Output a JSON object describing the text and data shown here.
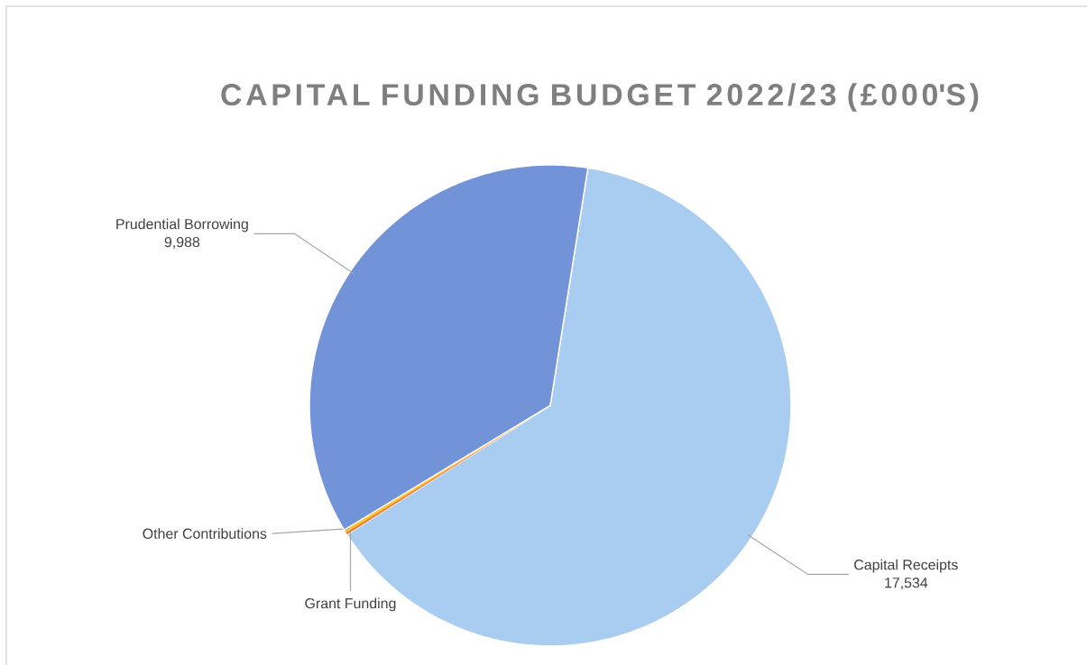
{
  "chart_data": {
    "type": "pie",
    "title": "CAPITAL FUNDING BUDGET 2022/23 (£000'S)",
    "categories": [
      "Capital Receipts",
      "Grant Funding",
      "Other Contributions",
      "Prudential Borrowing"
    ],
    "values": [
      17534,
      50,
      50,
      9988
    ],
    "colors": [
      "#a9cdf0",
      "#ed7d31",
      "#ffc000",
      "#7393d9"
    ],
    "value_labels": [
      "17,534",
      null,
      null,
      "9,988"
    ],
    "legend": false
  }
}
